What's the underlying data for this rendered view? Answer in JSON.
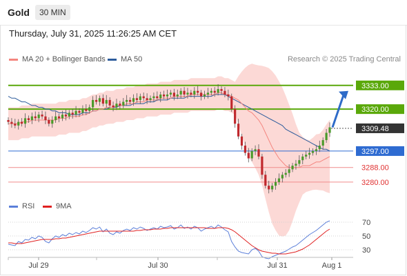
{
  "header": {
    "title": "Gold",
    "timeframe": "30 MIN"
  },
  "datetime": "Thursday, July 31, 2025 11:26:25 AM CET",
  "copyright": "Research © 2025 Trading Central",
  "legend_price": [
    {
      "label": "MA 20 + Bollinger Bands",
      "color": "#f4857f"
    },
    {
      "label": "MA 50",
      "color": "#2d5c9c"
    }
  ],
  "legend_rsi": [
    {
      "label": "RSI",
      "color": "#5b7fd9"
    },
    {
      "label": "9MA",
      "color": "#e02020"
    }
  ],
  "colors": {
    "resistance": "#5aa80a",
    "pivot": "#2e6bd1",
    "support": "#f08c8c",
    "last_price": "#333333",
    "arrow": "#2e6bc8",
    "band": "#fcd2cf",
    "candle_up": "#4a9a2a",
    "candle_down": "#c0282d",
    "wick": "#555555"
  },
  "chart_data": [
    {
      "type": "candlestick",
      "title": "",
      "x_labels": [
        "Jul 29",
        "Jul 30",
        "Jul 31",
        "Aug 1"
      ],
      "ylim": [
        3272,
        3342
      ],
      "y_ticks": [
        3333.0,
        3320.0,
        3309.48,
        3297.0,
        3288.0,
        3280.0
      ],
      "levels": [
        {
          "value": 3333.0,
          "label": "3333.00",
          "kind": "resistance"
        },
        {
          "value": 3320.0,
          "label": "3320.00",
          "kind": "resistance"
        },
        {
          "value": 3309.48,
          "label": "3309.48",
          "kind": "last_price"
        },
        {
          "value": 3297.0,
          "label": "3297.00",
          "kind": "pivot"
        },
        {
          "value": 3288.0,
          "label": "3288.00",
          "kind": "support"
        },
        {
          "value": 3280.0,
          "label": "3280.00",
          "kind": "support"
        }
      ],
      "close": [
        3313,
        3312,
        3311,
        3313,
        3312,
        3315,
        3314,
        3316,
        3315,
        3317,
        3316,
        3314,
        3312,
        3314,
        3316,
        3315,
        3317,
        3316,
        3318,
        3317,
        3319,
        3318,
        3320,
        3319,
        3321,
        3325,
        3324,
        3326,
        3323,
        3325,
        3322,
        3321,
        3323,
        3322,
        3324,
        3325,
        3324,
        3326,
        3325,
        3327,
        3326,
        3325,
        3326,
        3327,
        3326,
        3328,
        3327,
        3328,
        3329,
        3327,
        3328,
        3330,
        3328,
        3329,
        3328,
        3330,
        3329,
        3327,
        3328,
        3329,
        3330,
        3329,
        3331,
        3330,
        3328,
        3327,
        3320,
        3312,
        3305,
        3300,
        3296,
        3293,
        3297,
        3298,
        3294,
        3284,
        3278,
        3276,
        3278,
        3280,
        3282,
        3284,
        3285,
        3287,
        3289,
        3290,
        3292,
        3294,
        3295,
        3296,
        3297,
        3298,
        3300,
        3303,
        3307,
        3310
      ],
      "indicators": {
        "ma20": [
          3312,
          3312,
          3312,
          3312,
          3313,
          3313,
          3313,
          3314,
          3314,
          3314,
          3314,
          3314,
          3314,
          3314,
          3314,
          3315,
          3315,
          3315,
          3316,
          3316,
          3316,
          3316,
          3317,
          3317,
          3318,
          3319,
          3319,
          3320,
          3320,
          3321,
          3321,
          3321,
          3322,
          3322,
          3322,
          3323,
          3323,
          3323,
          3324,
          3324,
          3324,
          3325,
          3325,
          3325,
          3325,
          3326,
          3326,
          3326,
          3326,
          3327,
          3327,
          3327,
          3327,
          3327,
          3328,
          3328,
          3328,
          3328,
          3328,
          3328,
          3328,
          3328,
          3329,
          3329,
          3328,
          3328,
          3327,
          3326,
          3325,
          3323,
          3321,
          3319,
          3318,
          3316,
          3314,
          3311,
          3307,
          3303,
          3299,
          3296,
          3293,
          3291,
          3289,
          3288,
          3288,
          3288,
          3288,
          3289,
          3289,
          3289,
          3290,
          3291,
          3291,
          3292,
          3293,
          3294
        ],
        "ma50": [
          3327,
          3326,
          3326,
          3325,
          3324,
          3324,
          3323,
          3322,
          3322,
          3321,
          3321,
          3320,
          3320,
          3319,
          3319,
          3318,
          3318,
          3318,
          3317,
          3317,
          3317,
          3317,
          3318,
          3318,
          3318,
          3319,
          3319,
          3320,
          3320,
          3320,
          3321,
          3321,
          3321,
          3322,
          3322,
          3322,
          3322,
          3323,
          3323,
          3323,
          3323,
          3324,
          3324,
          3324,
          3325,
          3325,
          3325,
          3325,
          3326,
          3326,
          3326,
          3326,
          3326,
          3327,
          3327,
          3327,
          3327,
          3327,
          3327,
          3327,
          3327,
          3328,
          3328,
          3328,
          3328,
          3327,
          3326,
          3325,
          3324,
          3323,
          3322,
          3321,
          3320,
          3319,
          3318,
          3317,
          3316,
          3315,
          3314,
          3313,
          3312,
          3311,
          3309,
          3308,
          3307,
          3306,
          3305,
          3304,
          3303,
          3302,
          3301,
          3300,
          3299,
          3298,
          3298,
          3297
        ]
      }
    },
    {
      "type": "line",
      "title": "",
      "ylim": [
        20,
        80
      ],
      "y_ticks": [
        70,
        50,
        30
      ],
      "series": [
        {
          "name": "RSI",
          "values": [
            38,
            37,
            36,
            42,
            40,
            45,
            44,
            48,
            46,
            50,
            48,
            42,
            40,
            46,
            50,
            48,
            52,
            50,
            54,
            52,
            55,
            53,
            57,
            55,
            58,
            62,
            60,
            63,
            56,
            60,
            54,
            52,
            56,
            54,
            58,
            60,
            58,
            62,
            60,
            63,
            61,
            58,
            60,
            62,
            60,
            64,
            62,
            63,
            65,
            60,
            62,
            66,
            61,
            63,
            60,
            64,
            62,
            57,
            60,
            62,
            64,
            61,
            66,
            63,
            59,
            56,
            42,
            34,
            28,
            26,
            25,
            24,
            30,
            32,
            28,
            20,
            18,
            17,
            20,
            22,
            24,
            26,
            28,
            31,
            34,
            36,
            40,
            44,
            48,
            52,
            55,
            58,
            62,
            66,
            70,
            72
          ]
        },
        {
          "name": "9MA",
          "values": [
            40,
            40,
            39,
            39,
            39,
            40,
            41,
            42,
            43,
            44,
            45,
            45,
            45,
            45,
            46,
            46,
            47,
            47,
            48,
            49,
            50,
            51,
            52,
            53,
            54,
            55,
            56,
            57,
            57,
            57,
            57,
            57,
            57,
            57,
            57,
            57,
            57,
            57,
            58,
            58,
            59,
            59,
            59,
            60,
            60,
            60,
            61,
            61,
            62,
            62,
            62,
            62,
            62,
            62,
            62,
            62,
            62,
            62,
            62,
            61,
            61,
            61,
            62,
            62,
            62,
            61,
            59,
            56,
            52,
            48,
            44,
            40,
            36,
            33,
            30,
            28,
            27,
            26,
            25,
            25,
            24,
            24,
            24,
            25,
            26,
            27,
            29,
            31,
            34,
            37,
            41,
            45,
            49,
            53,
            57,
            60
          ]
        }
      ]
    }
  ]
}
